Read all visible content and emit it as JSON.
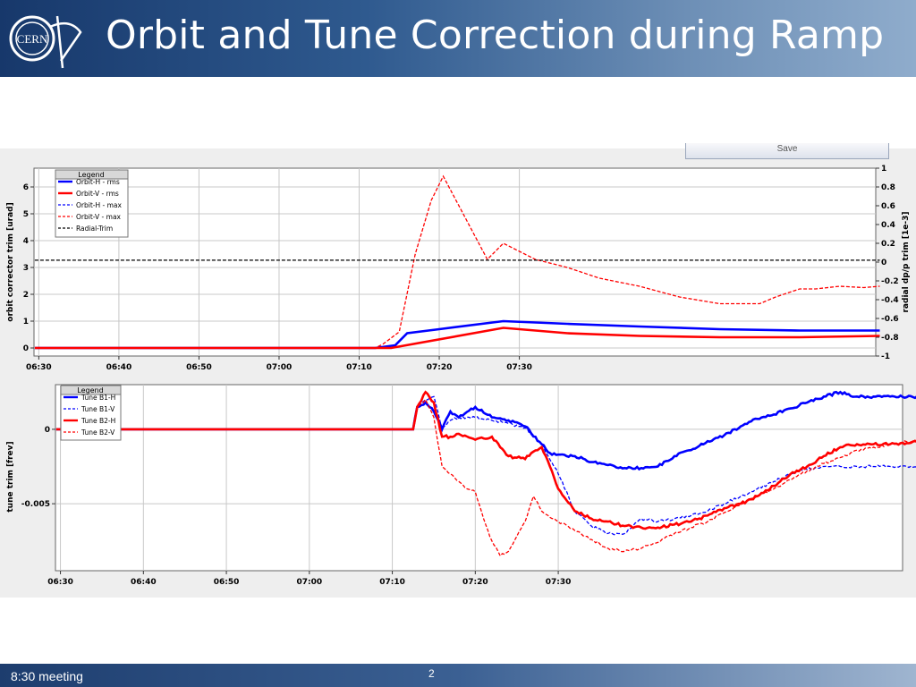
{
  "slide": {
    "title": "Orbit and Tune Correction during Ramp",
    "logo_text": "CERN",
    "footer_left": "8:30 meeting",
    "page_number": "2",
    "save_label": "Save"
  },
  "chart_data": [
    {
      "type": "line",
      "xlabel": "",
      "ylabel": "orbit corrector trim [urad]",
      "y2label": "radial dp/p trim [1e-3]",
      "x_ticks": [
        "06:30",
        "06:40",
        "06:50",
        "07:00",
        "07:10",
        "07:20",
        "07:30"
      ],
      "ylim": [
        -0.3,
        6.7
      ],
      "y_ticks": [
        "0",
        "1",
        "2",
        "3",
        "4",
        "5",
        "6"
      ],
      "y2lim": [
        -1,
        1
      ],
      "y2_ticks": [
        "-1",
        "-0.8",
        "-0.6",
        "-0.4",
        "-0.2",
        "0",
        "0.2",
        "0.4",
        "0.6",
        "0.8",
        "1"
      ],
      "legend_title": "Legend",
      "legend_position": "top-left",
      "grid": true,
      "series": [
        {
          "name": "Orbit-H - rms",
          "color": "#0000ff",
          "dash": false,
          "axis": "left",
          "x": [
            -0.5,
            42,
            44.5,
            46,
            50,
            58,
            66,
            75,
            85,
            95,
            105
          ],
          "y": [
            0,
            0,
            0.1,
            0.55,
            0.7,
            1.0,
            0.9,
            0.8,
            0.7,
            0.65,
            0.65
          ]
        },
        {
          "name": "Orbit-V - rms",
          "color": "#ff0000",
          "dash": false,
          "axis": "left",
          "x": [
            -0.5,
            44,
            58,
            66,
            75,
            85,
            95,
            105
          ],
          "y": [
            0,
            0,
            0.75,
            0.55,
            0.45,
            0.4,
            0.4,
            0.45
          ]
        },
        {
          "name": "Orbit-H - max",
          "color": "#0000ff",
          "dash": true,
          "axis": "left",
          "x": [],
          "y": []
        },
        {
          "name": "Orbit-V - max",
          "color": "#ff0000",
          "dash": true,
          "axis": "left",
          "x": [
            -0.5,
            42,
            43,
            45,
            47,
            49,
            50.5,
            56,
            58,
            62,
            66,
            70,
            75,
            80,
            85,
            90,
            92,
            95,
            97,
            100,
            103,
            105
          ],
          "y": [
            0,
            0,
            0.15,
            0.6,
            3.5,
            5.5,
            6.4,
            3.3,
            3.9,
            3.3,
            3.0,
            2.6,
            2.3,
            1.9,
            1.65,
            1.65,
            1.9,
            2.2,
            2.2,
            2.3,
            2.25,
            2.3
          ]
        },
        {
          "name": "Radial-Trim",
          "color": "#000000",
          "dash": true,
          "axis": "right",
          "x": [
            -0.5,
            105
          ],
          "y": [
            0.02,
            0.02
          ]
        }
      ]
    },
    {
      "type": "line",
      "xlabel": "",
      "ylabel": "tune trim [frev]",
      "x_ticks": [
        "06:30",
        "06:40",
        "06:50",
        "07:00",
        "07:10",
        "07:20",
        "07:30"
      ],
      "ylim": [
        -0.0095,
        0.003
      ],
      "y_ticks": [
        "0",
        "-0.005"
      ],
      "legend_title": "Legend",
      "legend_position": "top-left",
      "grid": true,
      "series": [
        {
          "name": "Tune B1-H",
          "color": "#0000ff",
          "dash": false,
          "x": [
            -0.5,
            42.5,
            43,
            44,
            45,
            46,
            47,
            48,
            50,
            52,
            54,
            56,
            58,
            59,
            60,
            62,
            64,
            66,
            68,
            70,
            72,
            74,
            76,
            78,
            80,
            82,
            84,
            86,
            88,
            90,
            92,
            94,
            96,
            98,
            100,
            104
          ],
          "y": [
            0,
            0,
            0.0015,
            0.0018,
            0.0012,
            0.0,
            0.0012,
            0.0008,
            0.0015,
            0.0008,
            0.0006,
            0.0002,
            -0.001,
            -0.0016,
            -0.0017,
            -0.0018,
            -0.0022,
            -0.0024,
            -0.0026,
            -0.0026,
            -0.0025,
            -0.0018,
            -0.0014,
            -0.0008,
            -0.0004,
            0.0002,
            0.0007,
            0.001,
            0.0014,
            0.0018,
            0.0022,
            0.0025,
            0.0022,
            0.0022,
            0.0022,
            0.0022
          ]
        },
        {
          "name": "Tune B1-V",
          "color": "#0000ff",
          "dash": true,
          "x": [
            -0.5,
            42.5,
            43,
            44,
            45,
            46,
            47,
            48,
            50,
            52,
            54,
            56,
            58,
            60,
            62,
            64,
            66,
            68,
            70,
            72,
            74,
            76,
            78,
            80,
            82,
            84,
            86,
            88,
            90,
            92,
            94,
            96,
            98,
            100,
            104
          ],
          "y": [
            0,
            0,
            0.0015,
            0.002,
            0.0022,
            0.0,
            0.0006,
            0.0008,
            0.0008,
            0.0006,
            0.0004,
            0.0001,
            -0.001,
            -0.003,
            -0.0055,
            -0.0065,
            -0.007,
            -0.007,
            -0.006,
            -0.0062,
            -0.006,
            -0.0058,
            -0.0055,
            -0.005,
            -0.0045,
            -0.004,
            -0.0035,
            -0.003,
            -0.0027,
            -0.0025,
            -0.0025,
            -0.0025,
            -0.0025,
            -0.0025,
            -0.0025
          ]
        },
        {
          "name": "Tune B2-H",
          "color": "#ff0000",
          "dash": false,
          "x": [
            -0.5,
            42.5,
            43,
            44,
            45,
            46,
            47,
            48,
            50,
            52,
            54,
            56,
            57,
            58,
            59,
            60,
            62,
            64,
            66,
            68,
            70,
            72,
            74,
            76,
            78,
            80,
            82,
            84,
            86,
            88,
            90,
            92,
            94,
            96,
            98,
            100,
            104
          ],
          "y": [
            0,
            0,
            0.0015,
            0.0025,
            0.0018,
            -0.0005,
            -0.0005,
            -0.0003,
            -0.0007,
            -0.0005,
            -0.0018,
            -0.002,
            -0.0015,
            -0.0012,
            -0.0025,
            -0.004,
            -0.0055,
            -0.006,
            -0.0062,
            -0.0065,
            -0.0066,
            -0.0066,
            -0.0064,
            -0.0062,
            -0.0058,
            -0.0053,
            -0.005,
            -0.0045,
            -0.0038,
            -0.003,
            -0.0025,
            -0.0018,
            -0.0012,
            -0.001,
            -0.001,
            -0.001,
            -0.0008
          ]
        },
        {
          "name": "Tune B2-V",
          "color": "#ff0000",
          "dash": true,
          "x": [
            -0.5,
            42.5,
            43,
            44,
            45,
            46,
            47,
            48,
            49,
            50,
            51,
            52,
            53,
            54,
            55,
            56,
            57,
            58,
            60,
            62,
            64,
            66,
            68,
            70,
            72,
            74,
            76,
            78,
            80,
            82,
            84,
            86,
            88,
            90,
            92,
            94,
            96,
            98,
            100,
            104
          ],
          "y": [
            0,
            0,
            0.0015,
            0.002,
            0.0008,
            -0.0025,
            -0.003,
            -0.0035,
            -0.004,
            -0.0042,
            -0.006,
            -0.0075,
            -0.0085,
            -0.0082,
            -0.0072,
            -0.0062,
            -0.0045,
            -0.0055,
            -0.0062,
            -0.0068,
            -0.0074,
            -0.008,
            -0.0082,
            -0.008,
            -0.0076,
            -0.007,
            -0.0066,
            -0.0062,
            -0.0056,
            -0.005,
            -0.0045,
            -0.004,
            -0.0034,
            -0.0028,
            -0.0023,
            -0.0019,
            -0.0014,
            -0.0012,
            -0.001,
            -0.0007
          ]
        }
      ]
    }
  ]
}
